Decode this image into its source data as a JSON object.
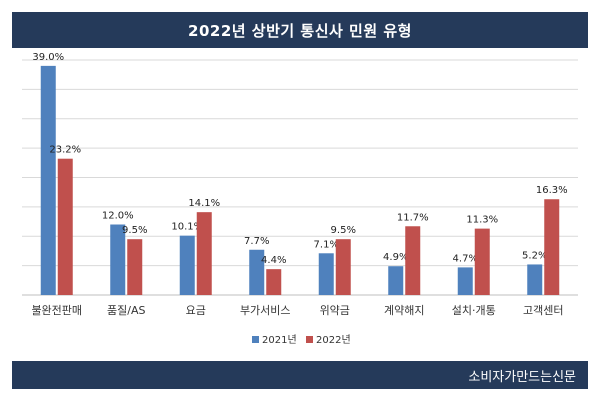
{
  "header": {
    "title": "2022년 상반기 통신사 민원 유형"
  },
  "footer": {
    "source": "소비자가만드는신문"
  },
  "chart_data": {
    "type": "bar",
    "categories": [
      "불완전판매",
      "품질/AS",
      "요금",
      "부가서비스",
      "위약금",
      "계약해지",
      "설치·개통",
      "고객센터"
    ],
    "series": [
      {
        "name": "2021년",
        "color": "#4f81bd",
        "values": [
          39.0,
          12.0,
          10.1,
          7.7,
          7.1,
          4.9,
          4.7,
          5.2
        ],
        "labels": [
          "39.0%",
          "12.0%",
          "10.1%",
          "7.7%",
          "7.1%",
          "4.9%",
          "4.7%",
          "5.2%"
        ]
      },
      {
        "name": "2022년",
        "color": "#c0504d",
        "values": [
          23.2,
          9.5,
          14.1,
          4.4,
          9.5,
          11.7,
          11.3,
          16.3
        ],
        "labels": [
          "23.2%",
          "9.5%",
          "14.1%",
          "4.4%",
          "9.5%",
          "11.7%",
          "11.3%",
          "16.3%"
        ]
      }
    ],
    "ylim": [
      0,
      40
    ],
    "grid": true,
    "legend": "bottom"
  }
}
